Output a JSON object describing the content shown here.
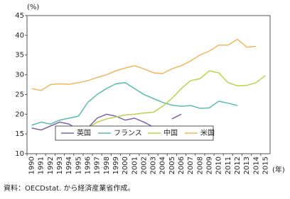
{
  "chart_data": {
    "type": "line",
    "y_unit": "(%)",
    "x_unit": "(年)",
    "source": "資料：OECDstat. から経済産業省作成。",
    "categories": [
      "1990",
      "1991",
      "1992",
      "1993",
      "1994",
      "1995",
      "1996",
      "1997",
      "1998",
      "1999",
      "2000",
      "2001",
      "2002",
      "2003",
      "2004",
      "2005",
      "2006",
      "2007",
      "2008",
      "2009",
      "2010",
      "2011",
      "2012",
      "2013",
      "2014",
      "2015"
    ],
    "series": [
      {
        "name": "英国",
        "color": "#7b62a8",
        "values": [
          16.5,
          16,
          17,
          18,
          17.5,
          16,
          16.5,
          19,
          20,
          19.5,
          18.5,
          19,
          18,
          16.8,
          null,
          18.8,
          20,
          null,
          null,
          null,
          null,
          null,
          null,
          null,
          null,
          null
        ]
      },
      {
        "name": "フランス",
        "color": "#5bbcae",
        "values": [
          17.2,
          18,
          17.5,
          18.5,
          19,
          19.5,
          23,
          25,
          26.5,
          27.7,
          28,
          26.5,
          25,
          24,
          23,
          22.3,
          22,
          22.2,
          21.5,
          21.6,
          23.3,
          22.8,
          22.2,
          null,
          null,
          null
        ]
      },
      {
        "name": "中国",
        "color": "#bdd24c",
        "values": [
          null,
          null,
          null,
          null,
          null,
          16,
          16.5,
          18,
          18.8,
          19.3,
          19.8,
          20,
          20.3,
          20.5,
          22,
          24,
          26.5,
          28.5,
          29,
          31,
          30.5,
          28,
          27.2,
          27.3,
          28,
          29.8
        ]
      },
      {
        "name": "米国",
        "color": "#f4b65c",
        "values": [
          26.5,
          26,
          27.5,
          27.7,
          27.6,
          28,
          28.5,
          29.3,
          30,
          31,
          31.7,
          32.3,
          31.5,
          30.5,
          30.3,
          31.5,
          32.3,
          33.5,
          35,
          36,
          37.5,
          37.5,
          39,
          37,
          37.2,
          null
        ]
      }
    ],
    "ylim": [
      10,
      45
    ],
    "yticks": [
      10,
      15,
      20,
      25,
      30,
      35,
      40,
      45
    ],
    "grid": false
  }
}
